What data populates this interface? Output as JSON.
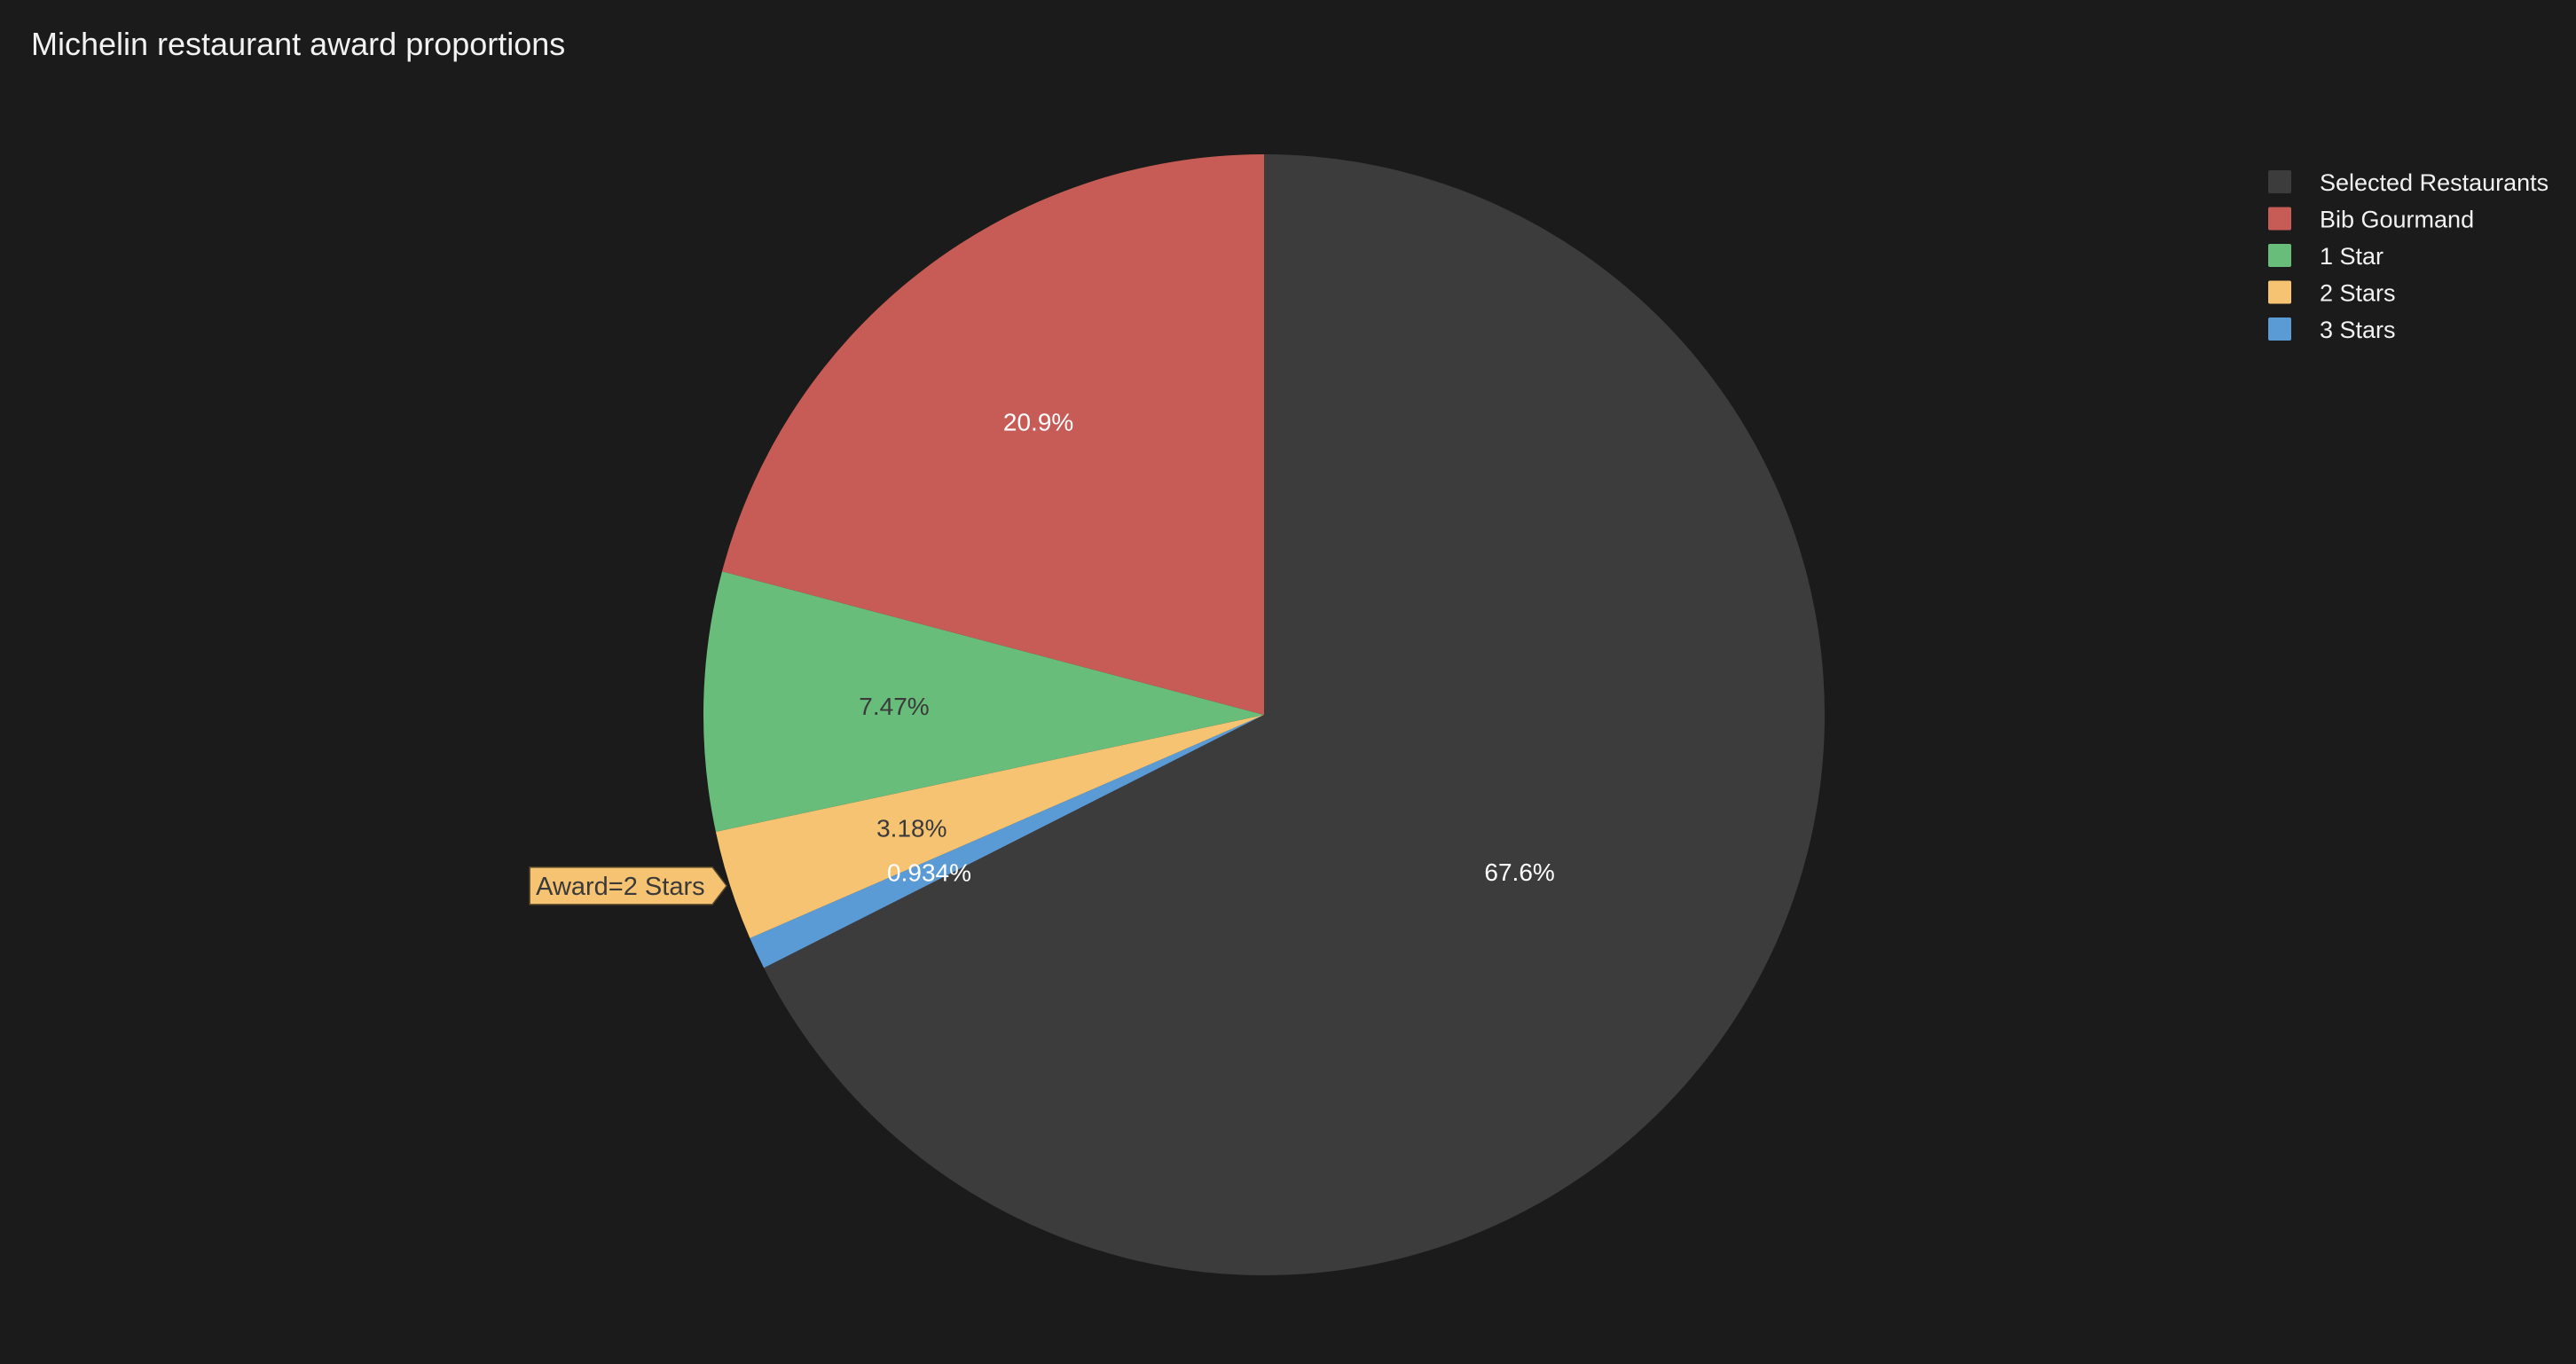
{
  "chart_data": {
    "type": "pie",
    "title": "Michelin restaurant award proportions",
    "slices": [
      {
        "label": "Selected Restaurants",
        "value": 67.6,
        "text": "67.6%",
        "color": "#3c3c3c",
        "text_color": "#ffffff"
      },
      {
        "label": "3 Stars",
        "value": 0.934,
        "text": "0.934%",
        "color": "#5b9bd5",
        "text_color": "#ffffff"
      },
      {
        "label": "2 Stars",
        "value": 3.18,
        "text": "3.18%",
        "color": "#f5c372",
        "text_color": "#3a3a3a"
      },
      {
        "label": "1 Star",
        "value": 7.47,
        "text": "7.47%",
        "color": "#68bd7b",
        "text_color": "#3a3a3a"
      },
      {
        "label": "Bib Gourmand",
        "value": 20.9,
        "text": "20.9%",
        "color": "#c75c57",
        "text_color": "#ffffff"
      }
    ],
    "legend": [
      "Selected Restaurants",
      "Bib Gourmand",
      "1 Star",
      "2 Stars",
      "3 Stars"
    ],
    "legend_position": "top-right",
    "hover_label": {
      "text": "Award=2 Stars",
      "slice": "2 Stars"
    }
  }
}
